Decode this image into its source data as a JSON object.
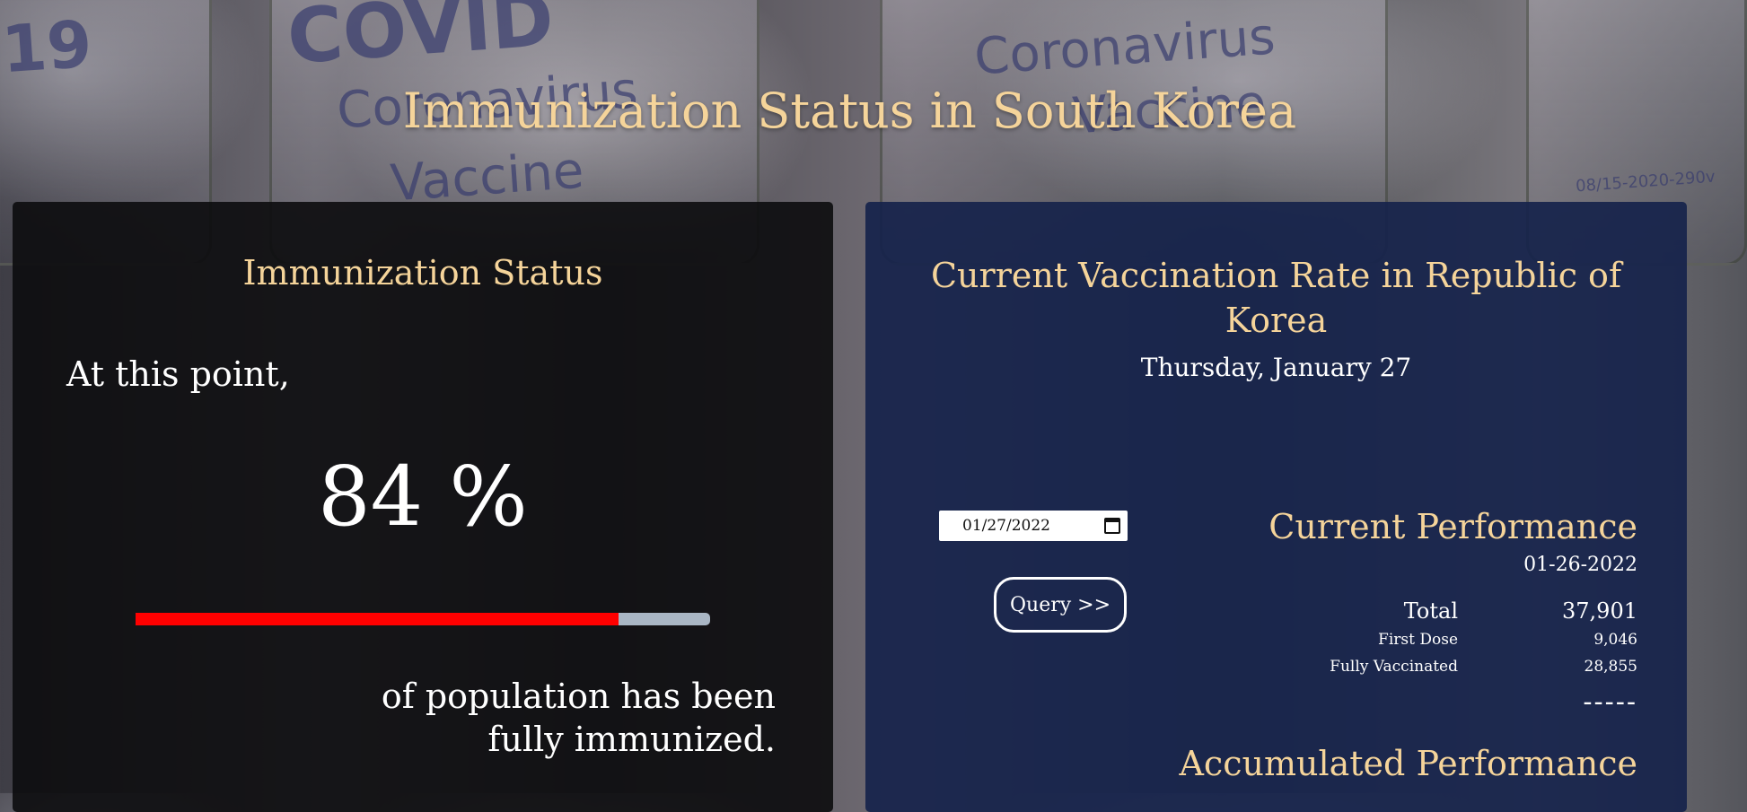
{
  "page": {
    "title": "Immunization Status in South Korea"
  },
  "background": {
    "vial_words": [
      "19",
      "COVID",
      "Coronavirus",
      "Vaccine",
      "Coronavirus",
      "Vaccine",
      "08/15-2020-290v"
    ]
  },
  "status_panel": {
    "title": "Immunization Status",
    "intro": "At this point,",
    "percent_text": "84 %",
    "progress_fraction": 0.84,
    "progress_color": "#ff0000",
    "progress_track_color": "#a9b6c4",
    "caption": "of population has been fully immunized."
  },
  "rate_panel": {
    "title": "Current Vaccination Rate in Republic of Korea",
    "date_label": "Thursday, January 27",
    "date_input_value": "01/27/2022",
    "query_button_label": "Query >>",
    "current": {
      "title": "Current Performance",
      "date": "01-26-2022",
      "total_label": "Total",
      "total_value": "37,901",
      "first_dose_label": "First Dose",
      "first_dose_value": "9,046",
      "fully_label": "Fully Vaccinated",
      "fully_value": "28,855",
      "separator": "-----"
    },
    "accumulated_title": "Accumulated Performance"
  },
  "colors": {
    "accent_gold": "#f5d49a",
    "left_panel_bg": "#0c0c0e",
    "right_panel_bg": "#16234b"
  }
}
